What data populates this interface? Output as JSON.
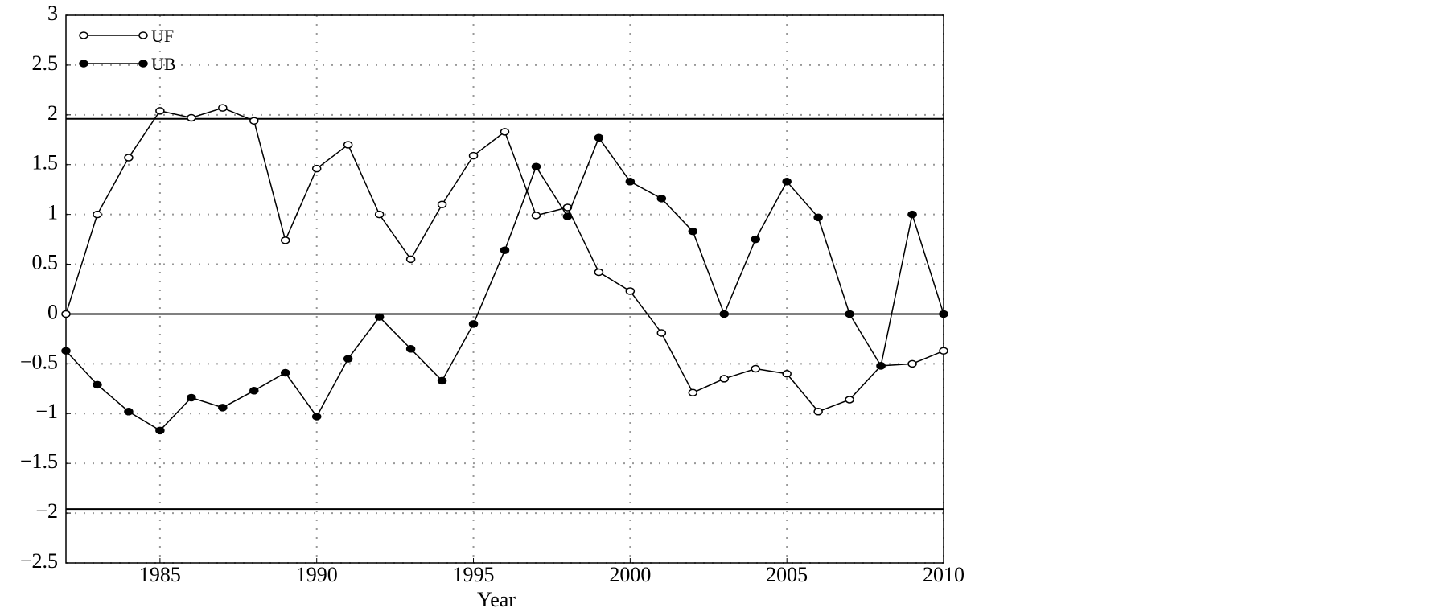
{
  "chart_data": {
    "type": "line",
    "x_label": "Year",
    "x": [
      1982,
      1983,
      1984,
      1985,
      1986,
      1987,
      1988,
      1989,
      1990,
      1991,
      1992,
      1993,
      1994,
      1995,
      1996,
      1997,
      1998,
      1999,
      2000,
      2001,
      2002,
      2003,
      2004,
      2005,
      2006,
      2007,
      2008,
      2009,
      2010
    ],
    "series": [
      {
        "name": "UF",
        "color": "#000000",
        "marker": "open",
        "values": [
          0,
          1.0,
          1.57,
          2.04,
          1.97,
          2.07,
          1.94,
          0.74,
          1.46,
          1.7,
          1.0,
          0.55,
          1.1,
          1.59,
          1.83,
          0.99,
          1.07,
          0.42,
          0.23,
          -0.19,
          -0.79,
          -0.65,
          -0.55,
          -0.6,
          -0.98,
          -0.86,
          -0.52,
          -0.5,
          -0.37
        ]
      },
      {
        "name": "UB",
        "color": "#000000",
        "marker": "filled",
        "values": [
          -0.37,
          -0.71,
          -0.98,
          -1.17,
          -0.84,
          -0.94,
          -0.77,
          -0.59,
          -1.03,
          -0.45,
          -0.03,
          -0.35,
          -0.67,
          -0.1,
          0.64,
          1.48,
          0.98,
          1.77,
          1.33,
          1.16,
          0.83,
          0,
          0.75,
          1.33,
          0.97,
          0,
          -0.52,
          1.0,
          0
        ]
      }
    ],
    "hlines": [
      1.96,
      0,
      -1.96
    ],
    "xlim": [
      1982,
      2010
    ],
    "xticks": [
      1985,
      1990,
      1995,
      2000,
      2005,
      2010
    ],
    "ylim": [
      -2.5,
      3
    ],
    "yticks": [
      {
        "value": -2.5,
        "label": "−2.5"
      },
      {
        "value": -2,
        "label": "−2"
      },
      {
        "value": -1.5,
        "label": "−1.5"
      },
      {
        "value": -1,
        "label": "−1"
      },
      {
        "value": -0.5,
        "label": "−0.5"
      },
      0,
      0.5,
      1,
      1.5,
      2,
      2.5,
      3
    ],
    "grid": true,
    "legend": "upper left"
  }
}
